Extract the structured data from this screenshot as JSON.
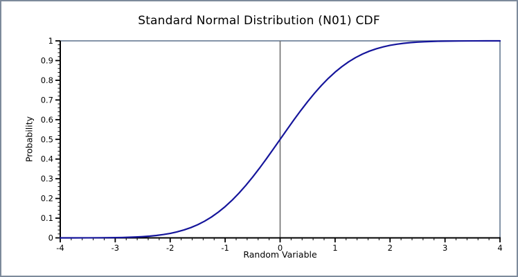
{
  "window": {
    "background": "#ffffff",
    "border_color": "#7d8a9b"
  },
  "chart_data": {
    "type": "line",
    "title": "Standard Normal Distribution (N01) CDF",
    "xlabel": "Random Variable",
    "ylabel": "Probability",
    "xlim": [
      -4,
      4
    ],
    "ylim": [
      0,
      1
    ],
    "x_ticks": [
      -4,
      -3,
      -2,
      -1,
      0,
      1,
      2,
      3,
      4
    ],
    "x_tick_labels": [
      "-4",
      "-3",
      "-2",
      "-1",
      "0",
      "1",
      "2",
      "3",
      "4"
    ],
    "y_ticks": [
      0,
      0.1,
      0.2,
      0.3,
      0.4,
      0.5,
      0.6,
      0.7,
      0.8,
      0.9,
      1
    ],
    "y_tick_labels": [
      "0",
      "0.1",
      "0.2",
      "0.3",
      "0.4",
      "0.5",
      "0.6",
      "0.7",
      "0.8",
      "0.9",
      "1"
    ],
    "x_minor_step": 0.2,
    "y_minor_step": 0.02,
    "grid": false,
    "legend": "none",
    "reference_lines": {
      "vertical_x": 0,
      "horizontal_y": 1,
      "right_frame_x": 4
    },
    "colors": {
      "curve": "#15159b",
      "axis": "#000000",
      "reference": "#6f6f6f",
      "frame": "#8494a8"
    },
    "series": [
      {
        "points": [
          [
            -4,
            3e-05
          ],
          [
            -3.75,
            9e-05
          ],
          [
            -3.5,
            0.00023
          ],
          [
            -3.25,
            0.00058
          ],
          [
            -3,
            0.00135
          ],
          [
            -2.875,
            0.00202
          ],
          [
            -2.75,
            0.00298
          ],
          [
            -2.625,
            0.00434
          ],
          [
            -2.5,
            0.00621
          ],
          [
            -2.375,
            0.00878
          ],
          [
            -2.25,
            0.01222
          ],
          [
            -2.125,
            0.01679
          ],
          [
            -2,
            0.02275
          ],
          [
            -1.875,
            0.0304
          ],
          [
            -1.75,
            0.04006
          ],
          [
            -1.625,
            0.0521
          ],
          [
            -1.5,
            0.06681
          ],
          [
            -1.375,
            0.08457
          ],
          [
            -1.25,
            0.10565
          ],
          [
            -1.125,
            0.13038
          ],
          [
            -1,
            0.15866
          ],
          [
            -0.875,
            0.19078
          ],
          [
            -0.75,
            0.22663
          ],
          [
            -0.625,
            0.266
          ],
          [
            -0.5,
            0.30854
          ],
          [
            -0.375,
            0.35381
          ],
          [
            -0.25,
            0.40129
          ],
          [
            -0.125,
            0.45026
          ],
          [
            0,
            0.5
          ],
          [
            0.125,
            0.54974
          ],
          [
            0.25,
            0.59871
          ],
          [
            0.375,
            0.64619
          ],
          [
            0.5,
            0.69146
          ],
          [
            0.625,
            0.734
          ],
          [
            0.75,
            0.77337
          ],
          [
            0.875,
            0.80922
          ],
          [
            1,
            0.84134
          ],
          [
            1.125,
            0.86962
          ],
          [
            1.25,
            0.89435
          ],
          [
            1.375,
            0.91543
          ],
          [
            1.5,
            0.93319
          ],
          [
            1.625,
            0.9479
          ],
          [
            1.75,
            0.95994
          ],
          [
            1.875,
            0.9696
          ],
          [
            2,
            0.97725
          ],
          [
            2.125,
            0.98321
          ],
          [
            2.25,
            0.98778
          ],
          [
            2.375,
            0.99122
          ],
          [
            2.5,
            0.99379
          ],
          [
            2.625,
            0.99566
          ],
          [
            2.75,
            0.99702
          ],
          [
            2.875,
            0.99798
          ],
          [
            3,
            0.99865
          ],
          [
            3.25,
            0.99942
          ],
          [
            3.5,
            0.99977
          ],
          [
            3.75,
            0.99991
          ],
          [
            4,
            0.99997
          ]
        ]
      }
    ]
  }
}
